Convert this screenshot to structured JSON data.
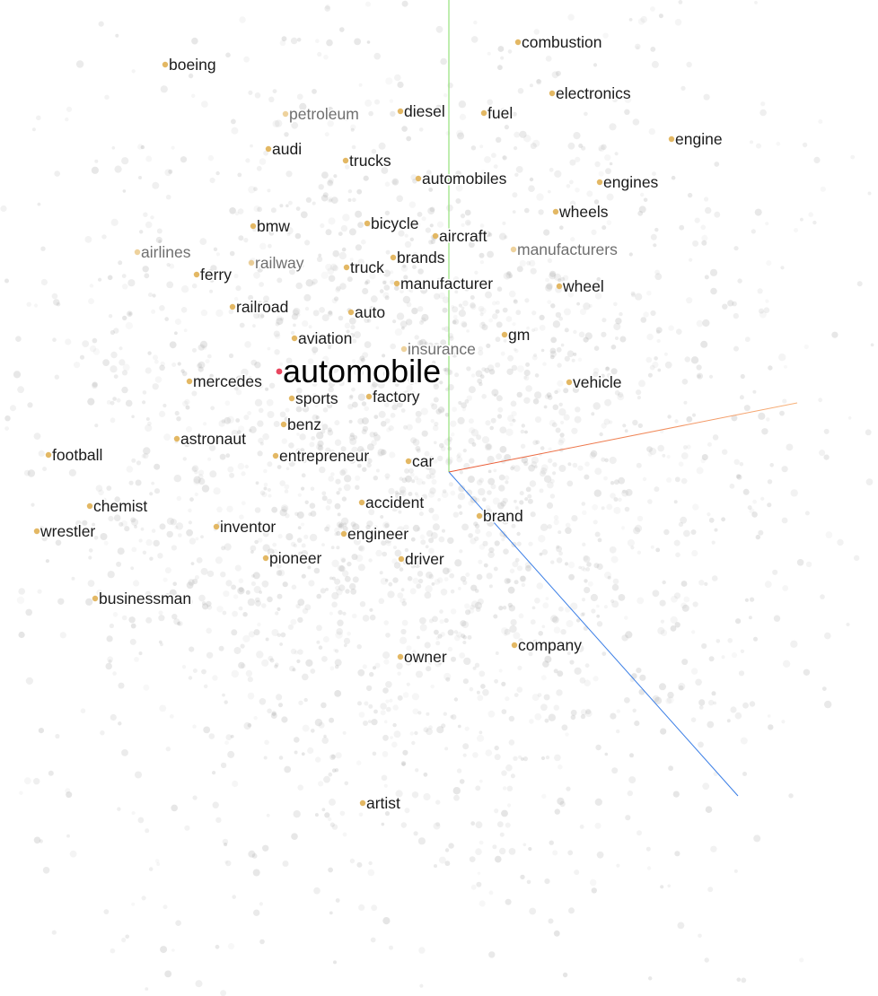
{
  "chart_data": {
    "type": "scatter",
    "projection": "3D embedding projection with XYZ axes",
    "colors": {
      "background_point": "#a9a9a9",
      "neighbor_point": "#e2b45c",
      "focus_point": "#e8475f",
      "axis_x": "#e8532f",
      "axis_x_far": "#f7b27a",
      "axis_y": "#7fdb5f",
      "axis_z": "#3a7ee6"
    },
    "focus": "automobile",
    "neighbors": [
      {
        "label": "combustion",
        "faded": false
      },
      {
        "label": "boeing",
        "faded": false
      },
      {
        "label": "electronics",
        "faded": false
      },
      {
        "label": "petroleum",
        "faded": true
      },
      {
        "label": "diesel",
        "faded": false
      },
      {
        "label": "fuel",
        "faded": false
      },
      {
        "label": "engine",
        "faded": false
      },
      {
        "label": "audi",
        "faded": false
      },
      {
        "label": "trucks",
        "faded": false
      },
      {
        "label": "automobiles",
        "faded": false
      },
      {
        "label": "engines",
        "faded": false
      },
      {
        "label": "wheels",
        "faded": false
      },
      {
        "label": "bmw",
        "faded": false
      },
      {
        "label": "bicycle",
        "faded": false
      },
      {
        "label": "aircraft",
        "faded": false
      },
      {
        "label": "airlines",
        "faded": true
      },
      {
        "label": "manufacturers",
        "faded": true
      },
      {
        "label": "brands",
        "faded": false
      },
      {
        "label": "railway",
        "faded": true
      },
      {
        "label": "ferry",
        "faded": false
      },
      {
        "label": "truck",
        "faded": false
      },
      {
        "label": "manufacturer",
        "faded": false
      },
      {
        "label": "wheel",
        "faded": false
      },
      {
        "label": "railroad",
        "faded": false
      },
      {
        "label": "auto",
        "faded": false
      },
      {
        "label": "aviation",
        "faded": false
      },
      {
        "label": "gm",
        "faded": false
      },
      {
        "label": "insurance",
        "faded": true
      },
      {
        "label": "mercedes",
        "faded": false
      },
      {
        "label": "vehicle",
        "faded": false
      },
      {
        "label": "sports",
        "faded": false
      },
      {
        "label": "factory",
        "faded": false
      },
      {
        "label": "benz",
        "faded": false
      },
      {
        "label": "astronaut",
        "faded": false
      },
      {
        "label": "football",
        "faded": false
      },
      {
        "label": "entrepreneur",
        "faded": false
      },
      {
        "label": "car",
        "faded": false
      },
      {
        "label": "accident",
        "faded": false
      },
      {
        "label": "brand",
        "faded": false
      },
      {
        "label": "chemist",
        "faded": false
      },
      {
        "label": "wrestler",
        "faded": false
      },
      {
        "label": "inventor",
        "faded": false
      },
      {
        "label": "engineer",
        "faded": false
      },
      {
        "label": "pioneer",
        "faded": false
      },
      {
        "label": "driver",
        "faded": false
      },
      {
        "label": "businessman",
        "faded": false
      },
      {
        "label": "company",
        "faded": false
      },
      {
        "label": "owner",
        "faded": false
      },
      {
        "label": "artist",
        "faded": false
      }
    ]
  }
}
